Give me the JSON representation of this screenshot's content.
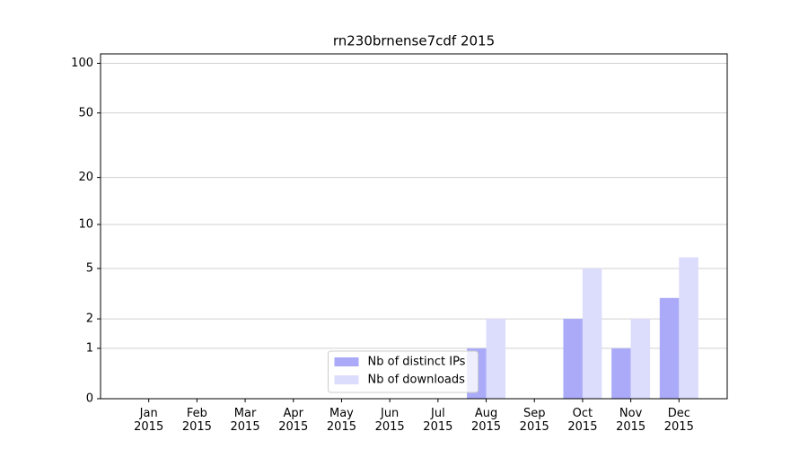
{
  "chart_data": {
    "type": "bar",
    "title": "rn230brnense7cdf 2015",
    "categories": [
      "Jan 2015",
      "Feb 2015",
      "Mar 2015",
      "Apr 2015",
      "May 2015",
      "Jun 2015",
      "Jul 2015",
      "Aug 2015",
      "Sep 2015",
      "Oct 2015",
      "Nov 2015",
      "Dec 2015"
    ],
    "series": [
      {
        "name": "Nb of distinct IPs",
        "color": "#aaaaf8",
        "values": [
          0,
          0,
          0,
          0,
          0,
          0,
          0,
          1,
          0,
          2,
          1,
          3
        ]
      },
      {
        "name": "Nb of downloads",
        "color": "#dcdcfc",
        "values": [
          0,
          0,
          0,
          0,
          0,
          0,
          0,
          2,
          0,
          5,
          2,
          6
        ]
      }
    ],
    "yscale": "log1p",
    "ylim": [
      0,
      114
    ],
    "yticks": [
      0,
      1,
      2,
      5,
      10,
      20,
      50,
      100
    ],
    "grid": true,
    "legend": "lower center"
  }
}
